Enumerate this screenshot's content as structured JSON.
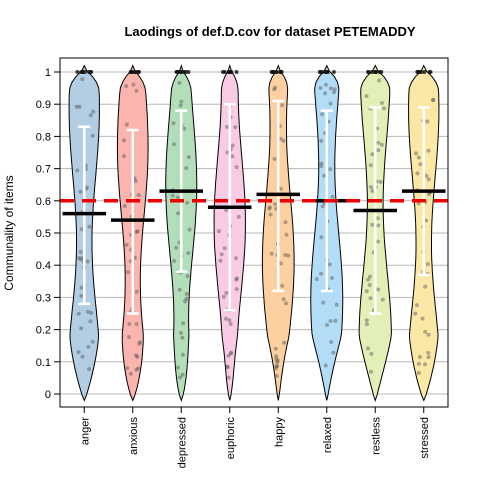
{
  "chart_data": {
    "type": "violin",
    "title": "Laodings of def.D.cov for dataset PETEMADDY",
    "xlabel": "",
    "ylabel": "Communality of items",
    "ylim": [
      0,
      1
    ],
    "yticks": [
      "0",
      "0.1",
      "0.2",
      "0.3",
      "0.4",
      "0.5",
      "0.6",
      "0.7",
      "0.8",
      "0.9",
      "1"
    ],
    "grid": true,
    "reference_line": 0.6,
    "reference_color": "#ee0000",
    "series": [
      {
        "name": "anger",
        "mean": 0.56,
        "sd_low": 0.28,
        "sd_high": 0.83,
        "color": "#b3cde3"
      },
      {
        "name": "anxious",
        "mean": 0.54,
        "sd_low": 0.25,
        "sd_high": 0.82,
        "color": "#fbb4ae"
      },
      {
        "name": "depressed",
        "mean": 0.63,
        "sd_low": 0.38,
        "sd_high": 0.88,
        "color": "#b2dfba"
      },
      {
        "name": "euphoric",
        "mean": 0.58,
        "sd_low": 0.26,
        "sd_high": 0.9,
        "color": "#f9cbe4"
      },
      {
        "name": "happy",
        "mean": 0.62,
        "sd_low": 0.32,
        "sd_high": 0.91,
        "color": "#fdd0a2"
      },
      {
        "name": "relaxed",
        "mean": 0.6,
        "sd_low": 0.32,
        "sd_high": 0.88,
        "color": "#b3dcf7"
      },
      {
        "name": "restless",
        "mean": 0.57,
        "sd_low": 0.25,
        "sd_high": 0.89,
        "color": "#e2f0b8"
      },
      {
        "name": "stressed",
        "mean": 0.63,
        "sd_low": 0.37,
        "sd_high": 0.89,
        "color": "#fbe8a6"
      }
    ]
  }
}
